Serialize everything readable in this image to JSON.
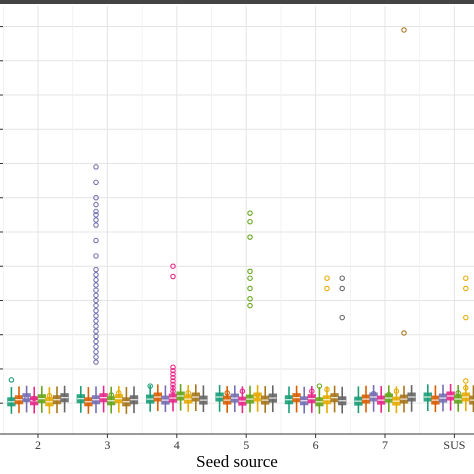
{
  "chart_data": {
    "type": "boxplot",
    "title": "",
    "xlabel": "Seed source",
    "ylabel": "",
    "x_categories": [
      "2",
      "3",
      "4",
      "5",
      "6",
      "7",
      "SUS"
    ],
    "grid": true,
    "background": "#ffffff",
    "grid_color": "#e4e4e4",
    "series_colors": [
      "#1b9e77",
      "#d95f02",
      "#7570b3",
      "#e7298a",
      "#66a61e",
      "#e6ab02",
      "#a6761d",
      "#666666"
    ],
    "groups": [
      {
        "category": "2",
        "box_center": 0.1,
        "outliers": [
          {
            "series": 0,
            "y": 0.68
          },
          {
            "series": 2,
            "y": 0.12
          },
          {
            "series": 3,
            "y": 0.14
          },
          {
            "series": 5,
            "y": 0.22
          }
        ]
      },
      {
        "category": "3",
        "box_center": 0.1,
        "outliers": [
          {
            "series": 2,
            "y": 6.9
          },
          {
            "series": 2,
            "y": 6.45
          },
          {
            "series": 2,
            "y": 6.0
          },
          {
            "series": 2,
            "y": 5.8
          },
          {
            "series": 2,
            "y": 5.6
          },
          {
            "series": 2,
            "y": 5.5
          },
          {
            "series": 2,
            "y": 5.35
          },
          {
            "series": 2,
            "y": 5.2
          },
          {
            "series": 2,
            "y": 4.75
          },
          {
            "series": 2,
            "y": 4.3
          },
          {
            "series": 2,
            "y": 3.9
          },
          {
            "series": 2,
            "y": 3.75
          },
          {
            "series": 2,
            "y": 3.6
          },
          {
            "series": 2,
            "y": 3.45
          },
          {
            "series": 2,
            "y": 3.3
          },
          {
            "series": 2,
            "y": 3.15
          },
          {
            "series": 2,
            "y": 3.0
          },
          {
            "series": 2,
            "y": 2.85
          },
          {
            "series": 2,
            "y": 2.7
          },
          {
            "series": 2,
            "y": 2.55
          },
          {
            "series": 2,
            "y": 2.4
          },
          {
            "series": 2,
            "y": 2.25
          },
          {
            "series": 2,
            "y": 2.1
          },
          {
            "series": 2,
            "y": 1.95
          },
          {
            "series": 2,
            "y": 1.8
          },
          {
            "series": 2,
            "y": 1.65
          },
          {
            "series": 2,
            "y": 1.5
          },
          {
            "series": 2,
            "y": 1.35
          },
          {
            "series": 2,
            "y": 1.2
          },
          {
            "series": 5,
            "y": 0.3
          },
          {
            "series": 4,
            "y": 0.24
          }
        ]
      },
      {
        "category": "4",
        "box_center": 0.15,
        "outliers": [
          {
            "series": 3,
            "y": 4.0
          },
          {
            "series": 3,
            "y": 3.7
          },
          {
            "series": 3,
            "y": 1.05
          },
          {
            "series": 3,
            "y": 0.95
          },
          {
            "series": 3,
            "y": 0.85
          },
          {
            "series": 3,
            "y": 0.75
          },
          {
            "series": 3,
            "y": 0.65
          },
          {
            "series": 3,
            "y": 0.55
          },
          {
            "series": 3,
            "y": 0.45
          },
          {
            "series": 3,
            "y": 0.35
          },
          {
            "series": 0,
            "y": 0.5
          },
          {
            "series": 5,
            "y": 0.3
          }
        ]
      },
      {
        "category": "5",
        "box_center": 0.12,
        "outliers": [
          {
            "series": 4,
            "y": 5.55
          },
          {
            "series": 4,
            "y": 5.3
          },
          {
            "series": 4,
            "y": 4.85
          },
          {
            "series": 4,
            "y": 3.85
          },
          {
            "series": 4,
            "y": 3.65
          },
          {
            "series": 4,
            "y": 3.35
          },
          {
            "series": 4,
            "y": 3.05
          },
          {
            "series": 4,
            "y": 2.85
          },
          {
            "series": 3,
            "y": 0.35
          },
          {
            "series": 1,
            "y": 0.3
          },
          {
            "series": 5,
            "y": 0.24
          }
        ]
      },
      {
        "category": "6",
        "box_center": 0.1,
        "outliers": [
          {
            "series": 5,
            "y": 3.65
          },
          {
            "series": 5,
            "y": 3.35
          },
          {
            "series": 7,
            "y": 3.65
          },
          {
            "series": 7,
            "y": 3.35
          },
          {
            "series": 7,
            "y": 2.5
          },
          {
            "series": 4,
            "y": 0.5
          },
          {
            "series": 5,
            "y": 0.4
          },
          {
            "series": 3,
            "y": 0.35
          }
        ]
      },
      {
        "category": "7",
        "box_center": 0.12,
        "outliers": [
          {
            "series": 6,
            "y": 10.9
          },
          {
            "series": 6,
            "y": 2.05
          },
          {
            "series": 5,
            "y": 0.35
          },
          {
            "series": 2,
            "y": 0.28
          },
          {
            "series": 4,
            "y": 0.25
          }
        ]
      },
      {
        "category": "SUS",
        "box_center": 0.15,
        "outliers": [
          {
            "series": 5,
            "y": 3.65
          },
          {
            "series": 5,
            "y": 3.35
          },
          {
            "series": 5,
            "y": 2.5
          },
          {
            "series": 5,
            "y": 0.65
          },
          {
            "series": 5,
            "y": 0.45
          },
          {
            "series": 4,
            "y": 0.3
          }
        ]
      }
    ],
    "y_range": [
      -0.9,
      11.6
    ]
  }
}
